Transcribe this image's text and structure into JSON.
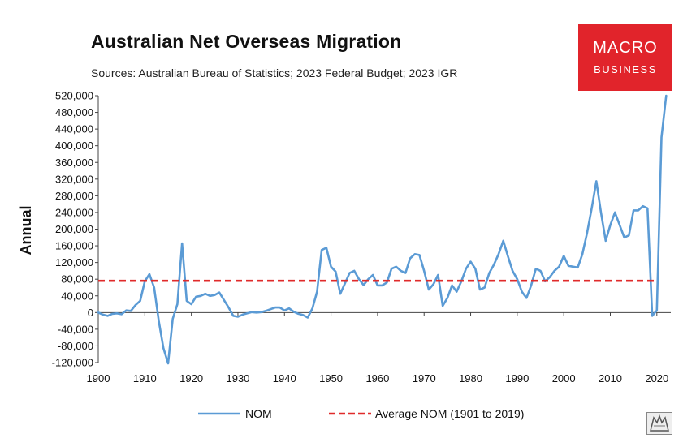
{
  "header": {
    "title": "Australian Net Overseas Migration",
    "subtitle": "Sources: Australian Bureau of Statistics; 2023 Federal Budget; 2023 IGR"
  },
  "logo": {
    "line1": "MACRO",
    "line2": "BUSINESS",
    "color": "#e1242b"
  },
  "chart_data": {
    "type": "line",
    "ylabel": "Annual",
    "xlim": [
      1900,
      2023
    ],
    "ylim": [
      -120000,
      520000
    ],
    "x_ticks": [
      1900,
      1910,
      1920,
      1930,
      1940,
      1950,
      1960,
      1970,
      1980,
      1990,
      2000,
      2010,
      2020
    ],
    "y_ticks": [
      -120000,
      -80000,
      -40000,
      0,
      40000,
      80000,
      120000,
      160000,
      200000,
      240000,
      280000,
      320000,
      360000,
      400000,
      440000,
      480000,
      520000
    ],
    "y_tick_labels": [
      "-120,000",
      "-80,000",
      "-40,000",
      "0",
      "40,000",
      "80,000",
      "120,000",
      "160,000",
      "200,000",
      "240,000",
      "280,000",
      "320,000",
      "360,000",
      "400,000",
      "440,000",
      "480,000",
      "520,000"
    ],
    "legend_position": "bottom",
    "series": [
      {
        "name": "NOM",
        "color": "#5b9bd5",
        "style": "solid",
        "x": [
          1900,
          1901,
          1902,
          1903,
          1904,
          1905,
          1906,
          1907,
          1908,
          1909,
          1910,
          1911,
          1912,
          1913,
          1914,
          1915,
          1916,
          1917,
          1918,
          1919,
          1920,
          1921,
          1922,
          1923,
          1924,
          1925,
          1926,
          1927,
          1928,
          1929,
          1930,
          1931,
          1932,
          1933,
          1934,
          1935,
          1936,
          1937,
          1938,
          1939,
          1940,
          1941,
          1942,
          1943,
          1944,
          1945,
          1946,
          1947,
          1948,
          1949,
          1950,
          1951,
          1952,
          1953,
          1954,
          1955,
          1956,
          1957,
          1958,
          1959,
          1960,
          1961,
          1962,
          1963,
          1964,
          1965,
          1966,
          1967,
          1968,
          1969,
          1970,
          1971,
          1972,
          1973,
          1974,
          1975,
          1976,
          1977,
          1978,
          1979,
          1980,
          1981,
          1982,
          1983,
          1984,
          1985,
          1986,
          1987,
          1988,
          1989,
          1990,
          1991,
          1992,
          1993,
          1994,
          1995,
          1996,
          1997,
          1998,
          1999,
          2000,
          2001,
          2002,
          2003,
          2004,
          2005,
          2006,
          2007,
          2008,
          2009,
          2010,
          2011,
          2012,
          2013,
          2014,
          2015,
          2016,
          2017,
          2018,
          2019,
          2020,
          2021,
          2022
        ],
        "values": [
          0,
          -5000,
          -8000,
          -3000,
          -2000,
          -4000,
          5000,
          4000,
          18000,
          28000,
          75000,
          92000,
          60000,
          -20000,
          -85000,
          -122000,
          -15000,
          20000,
          166000,
          28000,
          20000,
          38000,
          40000,
          45000,
          40000,
          42000,
          48000,
          30000,
          12000,
          -8000,
          -10000,
          -5000,
          -2000,
          1000,
          0,
          1000,
          4000,
          8000,
          12000,
          12000,
          5000,
          10000,
          2000,
          -3000,
          -6000,
          -12000,
          10000,
          50000,
          150000,
          155000,
          110000,
          98000,
          45000,
          70000,
          95000,
          100000,
          80000,
          66000,
          80000,
          90000,
          65000,
          65000,
          72000,
          105000,
          110000,
          100000,
          95000,
          130000,
          140000,
          138000,
          100000,
          55000,
          68000,
          90000,
          16000,
          35000,
          65000,
          50000,
          75000,
          105000,
          122000,
          105000,
          55000,
          60000,
          95000,
          115000,
          140000,
          172000,
          135000,
          100000,
          80000,
          50000,
          35000,
          65000,
          105000,
          100000,
          75000,
          85000,
          100000,
          110000,
          136000,
          112000,
          110000,
          108000,
          140000,
          190000,
          250000,
          315000,
          240000,
          172000,
          210000,
          240000,
          210000,
          180000,
          185000,
          245000,
          245000,
          255000,
          250000,
          -8000,
          5000,
          420000,
          520000
        ]
      },
      {
        "name": "Average NOM (1901 to 2019)",
        "color": "#e02b2b",
        "style": "dashed",
        "x": [
          1900,
          2020
        ],
        "values": [
          76000,
          76000
        ]
      }
    ]
  }
}
